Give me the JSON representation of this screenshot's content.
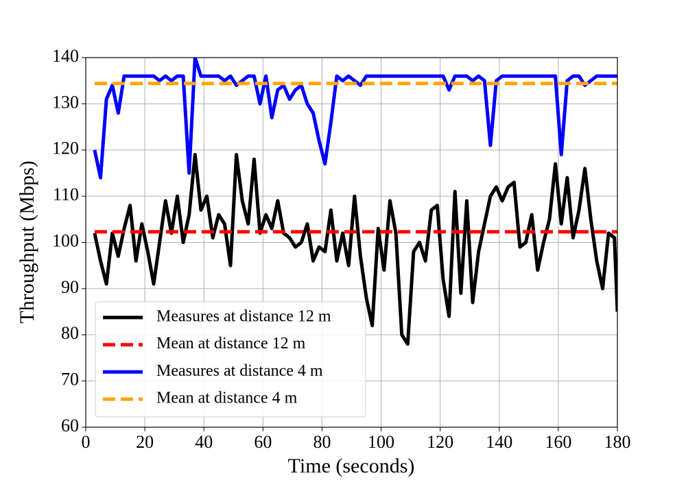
{
  "chart_data": {
    "type": "line",
    "xlabel": "Time (seconds)",
    "ylabel": "Throughput (Mbps)",
    "xlim": [
      0,
      180
    ],
    "xticks": [
      0,
      20,
      40,
      60,
      80,
      100,
      120,
      140,
      160,
      180
    ],
    "ylim": [
      60,
      140
    ],
    "yticks": [
      60,
      70,
      80,
      90,
      100,
      110,
      120,
      130,
      140
    ],
    "grid": true,
    "legend": "lower left",
    "series": [
      {
        "name": "Measures at distance 12 m",
        "color": "#000000",
        "linestyle": "solid",
        "x": [
          3,
          5,
          7,
          9,
          11,
          13,
          15,
          17,
          19,
          21,
          23,
          25,
          27,
          29,
          31,
          33,
          35,
          37,
          39,
          41,
          43,
          45,
          47,
          49,
          51,
          53,
          55,
          57,
          59,
          61,
          63,
          65,
          67,
          69,
          71,
          73,
          75,
          77,
          79,
          81,
          83,
          85,
          87,
          89,
          91,
          93,
          95,
          97,
          99,
          101,
          103,
          105,
          107,
          109,
          111,
          113,
          115,
          117,
          119,
          121,
          123,
          125,
          127,
          129,
          131,
          133,
          135,
          137,
          139,
          141,
          143,
          145,
          147,
          149,
          151,
          153,
          155,
          157,
          159,
          161,
          163,
          165,
          167,
          169,
          171,
          173,
          175,
          177,
          179,
          180
        ],
        "values": [
          102,
          96,
          91,
          102,
          97,
          103,
          108,
          96,
          104,
          98,
          91,
          100,
          109,
          102,
          110,
          100,
          106,
          119,
          107,
          110,
          101,
          106,
          104,
          95,
          119,
          109,
          104,
          118,
          102,
          106,
          103,
          109,
          102,
          101,
          99,
          100,
          104,
          96,
          99,
          98,
          107,
          96,
          102,
          95,
          110,
          97,
          88,
          82,
          103,
          94,
          109,
          102,
          80,
          78,
          98,
          100,
          96,
          107,
          108,
          92,
          84,
          111,
          89,
          109,
          87,
          98,
          104,
          110,
          112,
          109,
          112,
          113,
          99,
          100,
          106,
          94,
          100,
          105,
          117,
          104,
          114,
          101,
          107,
          116,
          105,
          96,
          90,
          102,
          101,
          85
        ]
      },
      {
        "name": "Mean at distance 12 m",
        "color": "#ff0000",
        "linestyle": "dashed",
        "x": [
          3,
          180
        ],
        "values": [
          102.3,
          102.3
        ]
      },
      {
        "name": "Measures at distance 4 m",
        "color": "#0000ff",
        "linestyle": "solid",
        "x": [
          3,
          5,
          7,
          9,
          11,
          13,
          15,
          17,
          19,
          21,
          23,
          25,
          27,
          29,
          31,
          33,
          35,
          37,
          39,
          41,
          43,
          45,
          47,
          49,
          51,
          53,
          55,
          57,
          59,
          61,
          63,
          65,
          67,
          69,
          71,
          73,
          75,
          77,
          79,
          81,
          83,
          85,
          87,
          89,
          91,
          93,
          95,
          97,
          99,
          101,
          103,
          105,
          107,
          109,
          111,
          113,
          115,
          117,
          119,
          121,
          123,
          125,
          127,
          129,
          131,
          133,
          135,
          137,
          139,
          141,
          143,
          145,
          147,
          149,
          151,
          153,
          155,
          157,
          159,
          161,
          163,
          165,
          167,
          169,
          171,
          173,
          175,
          177,
          179,
          180
        ],
        "values": [
          120,
          114,
          131,
          134,
          128,
          136,
          136,
          136,
          136,
          136,
          136,
          135,
          136,
          135,
          136,
          136,
          115,
          140,
          136,
          136,
          136,
          136,
          135,
          136,
          134,
          135,
          136,
          136,
          130,
          136,
          127,
          133,
          134,
          131,
          133,
          134,
          130,
          128,
          122,
          117,
          126,
          136,
          135,
          136,
          135,
          134,
          136,
          136,
          136,
          136,
          136,
          136,
          136,
          136,
          136,
          136,
          136,
          136,
          136,
          136,
          133,
          136,
          136,
          136,
          135,
          136,
          135,
          121,
          135,
          136,
          136,
          136,
          136,
          136,
          136,
          136,
          136,
          136,
          136,
          119,
          135,
          136,
          136,
          134,
          135,
          136,
          136,
          136,
          136,
          136
        ]
      },
      {
        "name": "Mean at distance 4 m",
        "color": "#ffa500",
        "linestyle": "dashed",
        "x": [
          3,
          180
        ],
        "values": [
          134.4,
          134.4
        ]
      }
    ]
  }
}
